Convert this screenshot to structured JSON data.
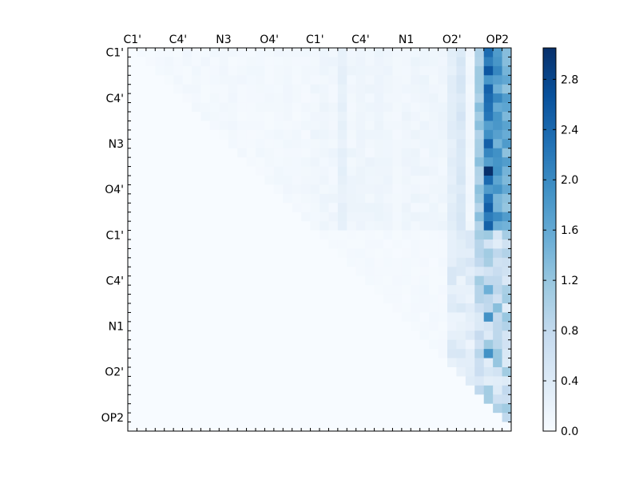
{
  "chart_data": {
    "type": "heatmap",
    "title": "",
    "xlabel": "",
    "ylabel": "",
    "colormap": "Blues",
    "colorbar": {
      "min": 0.0,
      "max": 3.05,
      "ticks": [
        0.0,
        0.4,
        0.8,
        1.2,
        1.6,
        2.0,
        2.4,
        2.8
      ],
      "tick_labels": [
        "0.0",
        "0.4",
        "0.8",
        "1.2",
        "1.6",
        "2.0",
        "2.4",
        "2.8"
      ]
    },
    "matrix_size": 42,
    "x_tick_labels": [
      "C1'",
      "C4'",
      "N3",
      "O4'",
      "C1'",
      "C4'",
      "N1",
      "O2'",
      "OP2"
    ],
    "y_tick_labels": [
      "C1'",
      "C4'",
      "N3",
      "O4'",
      "C1'",
      "C4'",
      "N1",
      "O2'",
      "OP2"
    ],
    "label_indices": [
      0,
      5,
      10,
      15,
      20,
      25,
      30,
      35,
      40
    ],
    "column_bands": [
      {
        "cols": [
          23
        ],
        "value": 0.25
      },
      {
        "cols": [
          25
        ],
        "value": 0.15
      },
      {
        "cols": [
          27
        ],
        "value": 0.15
      },
      {
        "cols": [
          29
        ],
        "value": 0.08
      },
      {
        "cols": [
          35
        ],
        "value": 0.3
      },
      {
        "cols": [
          36
        ],
        "value": 0.45
      },
      {
        "cols": [
          37
        ],
        "value": 0.1
      },
      {
        "cols": [
          38
        ],
        "value": 1.1
      },
      {
        "cols": [
          39
        ],
        "value": 2.1
      },
      {
        "cols": [
          40
        ],
        "value": 1.7
      },
      {
        "cols": [
          41
        ],
        "value": 1.5
      }
    ],
    "highlight_cells": [
      {
        "row": 2,
        "col": 39,
        "value": 2.6
      },
      {
        "row": 13,
        "col": 39,
        "value": 3.05
      },
      {
        "row": 6,
        "col": 39,
        "value": 2.3
      },
      {
        "row": 29,
        "col": 39,
        "value": 1.9
      },
      {
        "row": 33,
        "col": 39,
        "value": 1.9
      },
      {
        "row": 26,
        "col": 39,
        "value": 1.5
      },
      {
        "row": 28,
        "col": 40,
        "value": 1.3
      },
      {
        "row": 37,
        "col": 41,
        "value": 0.8
      },
      {
        "row": 21,
        "col": 38,
        "value": 0.9
      },
      {
        "row": 23,
        "col": 38,
        "value": 0.8
      }
    ]
  }
}
